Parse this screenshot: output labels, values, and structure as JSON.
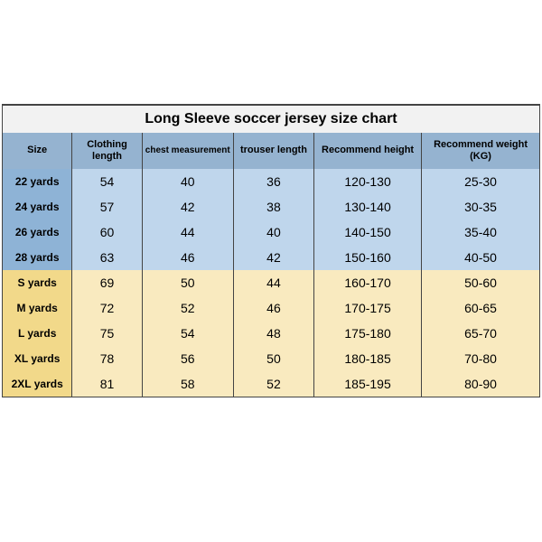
{
  "chart": {
    "title": "Long Sleeve soccer jersey size chart",
    "columns": [
      "Size",
      "Clothing length",
      "chest measurement",
      "trouser length",
      "Recommend height",
      "Recommend weight (KG)"
    ],
    "column_widths_pct": [
      13,
      13,
      17,
      15,
      20,
      22
    ],
    "title_bg": "#f2f2f2",
    "header_bg": "#95b3d0",
    "group_blue_size_bg": "#8eb3d6",
    "group_blue_data_bg": "#bfd6ec",
    "group_yellow_size_bg": "#f2d98a",
    "group_yellow_data_bg": "#f9eabf",
    "border_color": "#444444",
    "title_fontsize": 16,
    "header_fontsize": 11,
    "size_fontsize": 12,
    "data_fontsize": 14,
    "rows": [
      {
        "group": "blue",
        "cells": [
          "22 yards",
          "54",
          "40",
          "36",
          "120-130",
          "25-30"
        ]
      },
      {
        "group": "blue",
        "cells": [
          "24 yards",
          "57",
          "42",
          "38",
          "130-140",
          "30-35"
        ]
      },
      {
        "group": "blue",
        "cells": [
          "26 yards",
          "60",
          "44",
          "40",
          "140-150",
          "35-40"
        ]
      },
      {
        "group": "blue",
        "cells": [
          "28 yards",
          "63",
          "46",
          "42",
          "150-160",
          "40-50"
        ]
      },
      {
        "group": "yellow",
        "cells": [
          "S yards",
          "69",
          "50",
          "44",
          "160-170",
          "50-60"
        ]
      },
      {
        "group": "yellow",
        "cells": [
          "M yards",
          "72",
          "52",
          "46",
          "170-175",
          "60-65"
        ]
      },
      {
        "group": "yellow",
        "cells": [
          "L yards",
          "75",
          "54",
          "48",
          "175-180",
          "65-70"
        ]
      },
      {
        "group": "yellow",
        "cells": [
          "XL yards",
          "78",
          "56",
          "50",
          "180-185",
          "70-80"
        ]
      },
      {
        "group": "yellow",
        "cells": [
          "2XL yards",
          "81",
          "58",
          "52",
          "185-195",
          "80-90"
        ]
      }
    ]
  }
}
